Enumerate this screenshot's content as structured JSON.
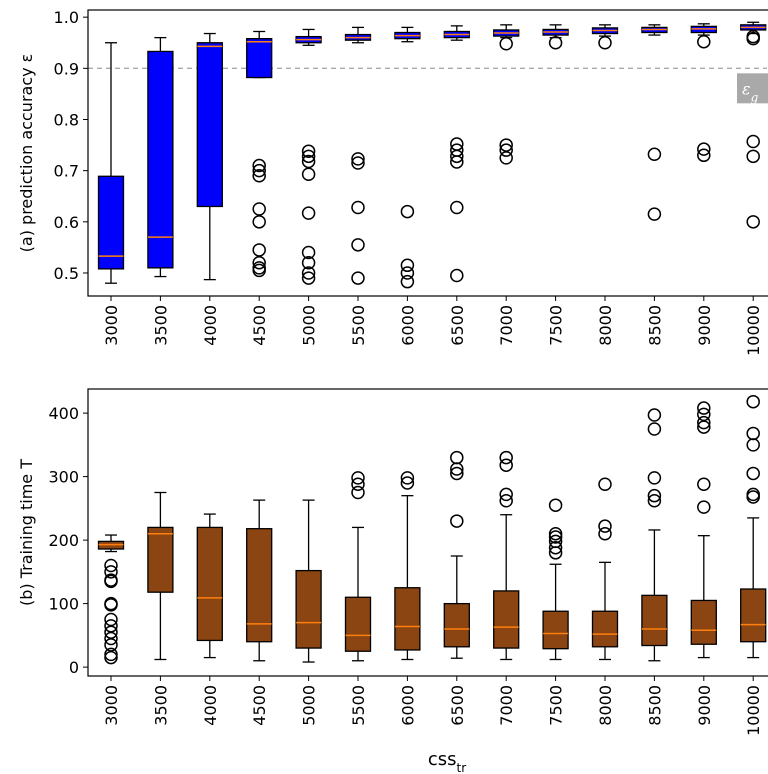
{
  "chart_data": [
    {
      "type": "box",
      "ylabel": "(a) prediction accuracy ε",
      "categories": [
        "3000",
        "3500",
        "4000",
        "4500",
        "5000",
        "5500",
        "6000",
        "6500",
        "7000",
        "7500",
        "8000",
        "8500",
        "9000",
        "10000"
      ],
      "whislo": [
        0.48,
        0.493,
        0.487,
        0.882,
        0.945,
        0.95,
        0.952,
        0.955,
        0.96,
        0.96,
        0.963,
        0.965,
        0.965,
        0.968
      ],
      "q1": [
        0.508,
        0.51,
        0.63,
        0.882,
        0.95,
        0.955,
        0.958,
        0.96,
        0.963,
        0.965,
        0.968,
        0.97,
        0.97,
        0.975
      ],
      "med": [
        0.533,
        0.57,
        0.943,
        0.952,
        0.956,
        0.96,
        0.964,
        0.966,
        0.969,
        0.971,
        0.974,
        0.976,
        0.977,
        0.98
      ],
      "q3": [
        0.689,
        0.933,
        0.95,
        0.958,
        0.962,
        0.966,
        0.97,
        0.972,
        0.975,
        0.976,
        0.979,
        0.98,
        0.982,
        0.985
      ],
      "whishi": [
        0.95,
        0.96,
        0.968,
        0.972,
        0.976,
        0.98,
        0.98,
        0.983,
        0.985,
        0.985,
        0.985,
        0.985,
        0.987,
        0.99
      ],
      "fliers": [
        [],
        [],
        [],
        [
          0.71,
          0.7,
          0.69,
          0.625,
          0.6,
          0.545,
          0.52,
          0.51,
          0.505
        ],
        [
          0.738,
          0.728,
          0.718,
          0.693,
          0.617,
          0.54,
          0.52,
          0.5,
          0.49
        ],
        [
          0.723,
          0.715,
          0.628,
          0.555,
          0.49
        ],
        [
          0.62,
          0.515,
          0.5,
          0.483
        ],
        [
          0.752,
          0.74,
          0.728,
          0.717,
          0.628,
          0.495
        ],
        [
          0.948,
          0.75,
          0.74,
          0.725
        ],
        [
          0.95
        ],
        [
          0.95
        ],
        [
          0.732,
          0.615
        ],
        [
          0.952,
          0.742,
          0.73
        ],
        [
          0.962,
          0.958,
          0.757,
          0.728,
          0.6
        ]
      ],
      "color": "#0000ff",
      "median_color": "#ff7f0e",
      "ylim": [
        0.455,
        1.014
      ],
      "yticks": [
        0.5,
        0.6,
        0.7,
        0.8,
        0.9,
        {
          "value": 1,
          "label": "1.0"
        }
      ],
      "threshold": 0.9,
      "threshold_label": "ε",
      "threshold_label_subscript": "g"
    },
    {
      "type": "box",
      "ylabel": "(b) Training time T",
      "xlabel": "css",
      "xlabel_subscript": "tr",
      "categories": [
        "3000",
        "3500",
        "4000",
        "4500",
        "5000",
        "5500",
        "6000",
        "6500",
        "7000",
        "7500",
        "8000",
        "8500",
        "9000",
        "10000"
      ],
      "whislo": [
        182,
        12,
        15,
        10,
        8,
        10,
        12,
        14,
        12,
        12,
        12,
        10,
        15,
        15
      ],
      "q1": [
        186,
        118,
        42,
        40,
        30,
        25,
        27,
        32,
        30,
        29,
        32,
        34,
        36,
        40
      ],
      "med": [
        193,
        210,
        109,
        68,
        70,
        50,
        64,
        60,
        63,
        53,
        52,
        60,
        58,
        67
      ],
      "q3": [
        198,
        220,
        220,
        218,
        152,
        110,
        125,
        100,
        120,
        88,
        88,
        113,
        105,
        123
      ],
      "whishi": [
        208,
        275,
        241,
        263,
        263,
        220,
        270,
        175,
        240,
        162,
        165,
        216,
        207,
        235
      ],
      "fliers": [
        [
          160,
          150,
          137,
          135,
          100,
          98,
          75,
          65,
          55,
          45,
          35,
          20,
          15
        ],
        [],
        [],
        [],
        [],
        [
          298,
          288,
          275
        ],
        [
          298,
          290
        ],
        [
          330,
          312,
          305,
          230
        ],
        [
          330,
          318,
          272,
          262
        ],
        [
          255,
          210,
          205,
          198,
          188,
          180
        ],
        [
          288,
          222,
          210
        ],
        [
          397,
          375,
          298,
          270,
          262
        ],
        [
          408,
          398,
          385,
          378,
          288,
          252
        ],
        [
          418,
          368,
          350,
          305,
          272,
          268
        ]
      ],
      "color": "#8b4513",
      "median_color": "#ff7f0e",
      "ylim": [
        -14,
        438
      ],
      "yticks": [
        0,
        100,
        200,
        300,
        400
      ]
    }
  ]
}
